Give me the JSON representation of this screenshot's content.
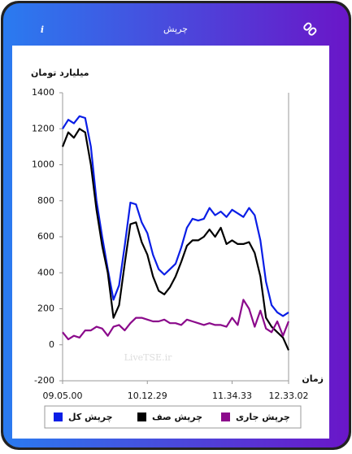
{
  "header": {
    "title": "چرپش"
  },
  "chart_data": {
    "type": "line",
    "y_label": "میلیارد تومان",
    "x_label": "زمان",
    "watermark": "LiveTSE.ir",
    "categories": [
      "09.05.00",
      null,
      null,
      null,
      null,
      null,
      null,
      null,
      null,
      null,
      null,
      null,
      null,
      null,
      null,
      "10.12.29",
      null,
      null,
      null,
      null,
      null,
      null,
      null,
      null,
      null,
      null,
      null,
      null,
      null,
      null,
      "11.34.33",
      null,
      null,
      null,
      null,
      null,
      null,
      null,
      null,
      null,
      "12.33.02"
    ],
    "ylim": [
      -200,
      1400
    ],
    "yticks": [
      -200,
      0,
      200,
      400,
      600,
      800,
      1000,
      1200,
      1400
    ],
    "grid": false,
    "series": [
      {
        "name": "چرپش کل",
        "color": "#0a1ee6",
        "values": [
          1200,
          1250,
          1230,
          1270,
          1260,
          1100,
          800,
          600,
          420,
          250,
          330,
          550,
          790,
          780,
          680,
          620,
          500,
          420,
          390,
          420,
          450,
          540,
          650,
          700,
          690,
          700,
          760,
          720,
          740,
          710,
          750,
          730,
          710,
          760,
          720,
          580,
          350,
          220,
          180,
          160,
          180
        ]
      },
      {
        "name": "چرپش صف",
        "color": "#000000",
        "values": [
          1100,
          1180,
          1150,
          1200,
          1180,
          1000,
          750,
          550,
          400,
          150,
          220,
          450,
          670,
          680,
          570,
          500,
          380,
          300,
          280,
          320,
          380,
          460,
          550,
          580,
          580,
          600,
          640,
          600,
          650,
          560,
          580,
          560,
          560,
          570,
          510,
          380,
          150,
          100,
          70,
          40,
          -30
        ]
      },
      {
        "name": "چرپش جاری",
        "color": "#8b0a8b",
        "values": [
          70,
          30,
          50,
          40,
          80,
          80,
          100,
          90,
          50,
          100,
          110,
          80,
          120,
          150,
          150,
          140,
          130,
          130,
          140,
          120,
          120,
          110,
          140,
          130,
          120,
          110,
          120,
          110,
          110,
          100,
          150,
          110,
          250,
          200,
          100,
          190,
          90,
          70,
          130,
          50,
          130
        ]
      }
    ]
  }
}
